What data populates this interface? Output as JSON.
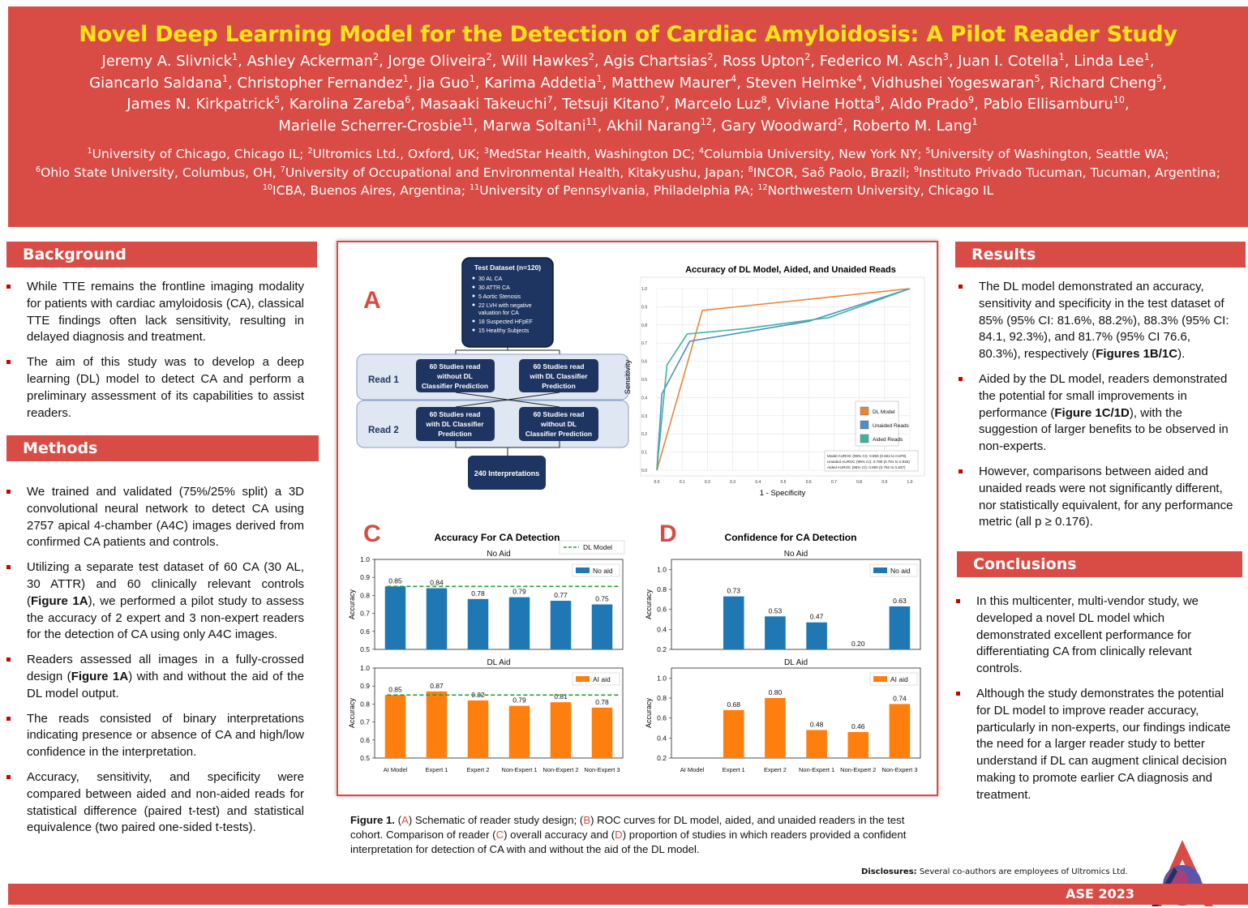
{
  "title": "Novel Deep Learning Model for the Detection of Cardiac Amyloidosis: A Pilot Reader Study",
  "authors": [
    [
      [
        "Jeremy A. Slivnick",
        "1"
      ],
      [
        "Ashley Ackerman",
        "2"
      ],
      [
        "Jorge Oliveira",
        "2"
      ],
      [
        "Will Hawkes",
        "2"
      ],
      [
        "Agis Chartsias",
        "2"
      ],
      [
        "Ross Upton",
        "2"
      ],
      [
        "Federico M. Asch",
        "3"
      ],
      [
        "Juan I. Cotella",
        "1"
      ],
      [
        "Linda Lee",
        "1"
      ]
    ],
    [
      [
        "Giancarlo Saldana",
        "1"
      ],
      [
        "Christopher Fernandez",
        "1"
      ],
      [
        "Jia Guo",
        "1"
      ],
      [
        "Karima Addetia",
        "1"
      ],
      [
        "Matthew Maurer",
        "4"
      ],
      [
        "Steven Helmke",
        "4"
      ],
      [
        "Vidhushei Yogeswaran",
        "5"
      ],
      [
        "Richard Cheng",
        "5"
      ]
    ],
    [
      [
        "James N. Kirkpatrick",
        "5"
      ],
      [
        "Karolina Zareba",
        "6"
      ],
      [
        "Masaaki Takeuchi",
        "7"
      ],
      [
        "Tetsuji Kitano",
        "7"
      ],
      [
        "Marcelo Luz",
        "8"
      ],
      [
        "Viviane Hotta",
        "8"
      ],
      [
        "Aldo Prado",
        "9"
      ],
      [
        "Pablo Ellisamburu",
        "10"
      ]
    ],
    [
      [
        "Marielle Scherrer-Crosbie",
        "11"
      ],
      [
        "Marwa Soltani",
        "11"
      ],
      [
        "Akhil Narang",
        "12"
      ],
      [
        "Gary Woodward",
        "2"
      ],
      [
        "Roberto M. Lang",
        "1"
      ]
    ]
  ],
  "affiliations": [
    [
      [
        "1",
        "University of Chicago, Chicago IL; "
      ],
      [
        "2",
        "Ultromics Ltd., Oxford, UK; "
      ],
      [
        "3",
        "MedStar Health, Washington DC; "
      ],
      [
        "4",
        "Columbia University, New York NY; "
      ],
      [
        "5",
        "University of Washington, Seattle WA;"
      ]
    ],
    [
      [
        "6",
        "Ohio State University, Columbus, OH, "
      ],
      [
        "7",
        "University of Occupational and Environmental Health, Kitakyushu, Japan; "
      ],
      [
        "8",
        "INCOR, Saõ Paolo, Brazil; "
      ],
      [
        "9",
        "Instituto Privado Tucuman, Tucuman, Argentina;"
      ]
    ],
    [
      [
        "10",
        "ICBA, Buenos Aires, Argentina; "
      ],
      [
        "11",
        "University of Pennsylvania, Philadelphia PA; "
      ],
      [
        "12",
        "Northwestern University, Chicago IL"
      ]
    ]
  ],
  "background": {
    "heading": "Background",
    "items": [
      "While TTE remains the frontline imaging modality for patients with cardiac amyloidosis (CA), classical TTE findings often lack sensitivity, resulting in delayed diagnosis and treatment.",
      "The aim of this study was to develop a deep learning (DL) model to detect CA and perform a preliminary assessment of its capabilities to assist readers."
    ]
  },
  "methods": {
    "heading": "Methods",
    "items": [
      "We trained and validated (75%/25% split) a 3D convolutional neural network to detect CA using 2757 apical 4-chamber (A4C) images derived from confirmed CA patients and controls.",
      [
        "Utilizing a separate test dataset of 60 CA (30 AL, 30 ATTR) and 60 clinically relevant controls (",
        "Figure 1A",
        "), we performed a pilot study to assess the accuracy of 2 expert and 3 non-expert readers for the detection of CA using only A4C images."
      ],
      [
        "Readers assessed all images in a fully-crossed design (",
        "Figure 1A",
        ") with and without the aid of the DL model output."
      ],
      "The reads consisted of binary interpretations indicating presence or absence of CA and high/low confidence in the interpretation.",
      "Accuracy, sensitivity, and specificity were compared between aided and non-aided reads for statistical difference (paired t-test) and statistical equivalence (two paired one-sided t-tests)."
    ]
  },
  "results": {
    "heading": "Results",
    "items": [
      [
        "The DL model demonstrated an accuracy, sensitivity and specificity in the test dataset of 85% (95% CI: 81.6%, 88.2%), 88.3% (95% CI: 84.1, 92.3%), and 81.7% (95% CI 76.6, 80.3%), respectively (",
        "Figures 1B/1C",
        ")."
      ],
      [
        "Aided by the DL model, readers demonstrated the potential for small improvements in performance (",
        "Figure 1C/1D",
        "), with the suggestion of larger benefits to be observed in non-experts."
      ],
      "However, comparisons between aided and unaided reads were not significantly different, nor statistically equivalent, for any performance metric (all p ≥ 0.176)."
    ]
  },
  "conclusions": {
    "heading": "Conclusions",
    "items": [
      "In this multicenter, multi-vendor study, we developed a novel DL model which demonstrated excellent performance for differentiating CA from clinically relevant controls.",
      "Although the study demonstrates the potential for DL model to improve reader accuracy, particularly in non-experts, our findings indicate the need for a larger reader study to better understand if DL can augment clinical decision making to promote earlier CA diagnosis and treatment."
    ]
  },
  "figure": {
    "panel_letters": [
      "A",
      "B",
      "C",
      "D"
    ],
    "schematic": {
      "dataset_title": "Test Dataset (n=120)",
      "dataset_items": [
        "30 AL CA",
        "30 ATTR CA",
        "5 Aortic Stenosis",
        "22 LVH with negative evaluation for CA",
        "18 Suspected HFpEF",
        "15 Healthy Subjects"
      ],
      "read1": "Read 1",
      "read2": "Read 2",
      "r1_left": [
        "60 Studies read",
        "without DL",
        "Classifier Prediction"
      ],
      "r1_right": [
        "60 Studies read",
        "with DL Classifier",
        "Prediction"
      ],
      "r2_left": [
        "60 Studies read",
        "with DL Classifier",
        "Prediction"
      ],
      "r2_right": [
        "60 Studies read",
        "without DL",
        "Classifier Prediction"
      ],
      "total": "240 Interpretations"
    },
    "caption": {
      "label": "Figure 1.",
      "parts": [
        " (",
        "A",
        ") Schematic of reader study design; (",
        "B",
        ") ROC curves for DL model, aided, and unaided readers in the test cohort. Comparison of reader (",
        "C",
        ") overall accuracy and (",
        "D",
        ") proportion of studies in which readers provided a confident interpretation for detection of CA with and without the aid of the DL model."
      ]
    }
  },
  "chart_data": [
    {
      "type": "line",
      "title": "Accuracy of DL Model, Aided, and Unaided Reads",
      "xlabel": "1 - Specificity",
      "ylabel": "Sensitivity",
      "xlim": [
        0,
        1
      ],
      "ylim": [
        0,
        1
      ],
      "grid": true,
      "legend_position": "center-right",
      "xticks": [
        "0.0",
        "0.1",
        "0.2",
        "0.3",
        "0.4",
        "0.5",
        "0.6",
        "0.7",
        "0.8",
        "0.9",
        "1.0"
      ],
      "yticks": [
        "0.0",
        "0.1",
        "0.2",
        "0.3",
        "0.4",
        "0.5",
        "0.6",
        "0.7",
        "0.8",
        "0.9",
        "1.0"
      ],
      "series": [
        {
          "name": "DL Model",
          "color": "#e8853a",
          "points": [
            [
              0,
              0
            ],
            [
              0.18,
              0.88
            ],
            [
              1,
              1
            ]
          ]
        },
        {
          "name": "Unaided Reads",
          "color": "#4d8fc6",
          "points": [
            [
              0,
              0
            ],
            [
              0.02,
              0.42
            ],
            [
              0.13,
              0.71
            ],
            [
              0.6,
              0.82
            ],
            [
              1,
              1
            ]
          ]
        },
        {
          "name": "Aided Reads",
          "color": "#3db598",
          "points": [
            [
              0,
              0
            ],
            [
              0.04,
              0.58
            ],
            [
              0.12,
              0.75
            ],
            [
              0.35,
              0.78
            ],
            [
              0.68,
              0.84
            ],
            [
              1,
              1
            ]
          ]
        }
      ],
      "annotation": [
        "Model AUROC (95% CI): 0.850 (0.822 to 0.878)",
        "Unaided AUROC (95% CI): 0.788 (0.751 to 0.825)",
        "Aided AUROC (95% CI): 0.800 (0.762 to 0.837)"
      ]
    },
    {
      "type": "bar",
      "title": "Accuracy For CA Detection",
      "ylabel": "Accuracy",
      "categories": [
        "AI Model",
        "Expert 1",
        "Expert 2",
        "Non-Expert 1",
        "Non-Expert 2",
        "Non-Expert 3"
      ],
      "ylim": [
        0.5,
        1.0
      ],
      "yticks": [
        "0.5",
        "0.6",
        "0.7",
        "0.8",
        "0.9",
        "1.0"
      ],
      "reference_line": {
        "name": "DL Model",
        "value": 0.85,
        "color": "#2a9a3a"
      },
      "panels": [
        {
          "subtitle": "No Aid",
          "series_name": "No aid",
          "color": "#1f77b4",
          "values": [
            0.85,
            0.84,
            0.78,
            0.79,
            0.77,
            0.75
          ],
          "labels": [
            "0.85",
            "0.84",
            "0.78",
            "0.79",
            "0.77",
            "0.75"
          ]
        },
        {
          "subtitle": "DL Aid",
          "series_name": "AI aid",
          "color": "#ff7f0e",
          "values": [
            0.85,
            0.87,
            0.82,
            0.79,
            0.81,
            0.78
          ],
          "labels": [
            "0.85",
            "0.87",
            "0.82",
            "0.79",
            "0.81",
            "0.78"
          ]
        }
      ]
    },
    {
      "type": "bar",
      "title": "Confidence for CA Detection",
      "ylabel": "Accuracy",
      "categories": [
        "AI Model",
        "Expert 1",
        "Expert 2",
        "Non-Expert 1",
        "Non-Expert 2",
        "Non-Expert 3"
      ],
      "ylim": [
        0.2,
        1.1
      ],
      "yticks": [
        "0.2",
        "0.4",
        "0.6",
        "0.8",
        "1.0"
      ],
      "panels": [
        {
          "subtitle": "No Aid",
          "series_name": "No aid",
          "color": "#1f77b4",
          "values": [
            null,
            0.73,
            0.53,
            0.47,
            0.2,
            0.63
          ],
          "labels": [
            "",
            "0.73",
            "0.53",
            "0.47",
            "0.20",
            "0.63"
          ]
        },
        {
          "subtitle": "DL Aid",
          "series_name": "AI aid",
          "color": "#ff7f0e",
          "values": [
            null,
            0.68,
            0.8,
            0.48,
            0.46,
            0.74
          ],
          "labels": [
            "",
            "0.68",
            "0.80",
            "0.48",
            "0.46",
            "0.74"
          ]
        }
      ]
    }
  ],
  "disclosure": {
    "label": "Disclosures:",
    "text": " Several co-authors are employees of Ultromics Ltd."
  },
  "footer": "ASE 2023",
  "colors": {
    "brand_red": "#d94b45",
    "title_yellow": "#ffe21a",
    "navy": "#1e3461"
  }
}
